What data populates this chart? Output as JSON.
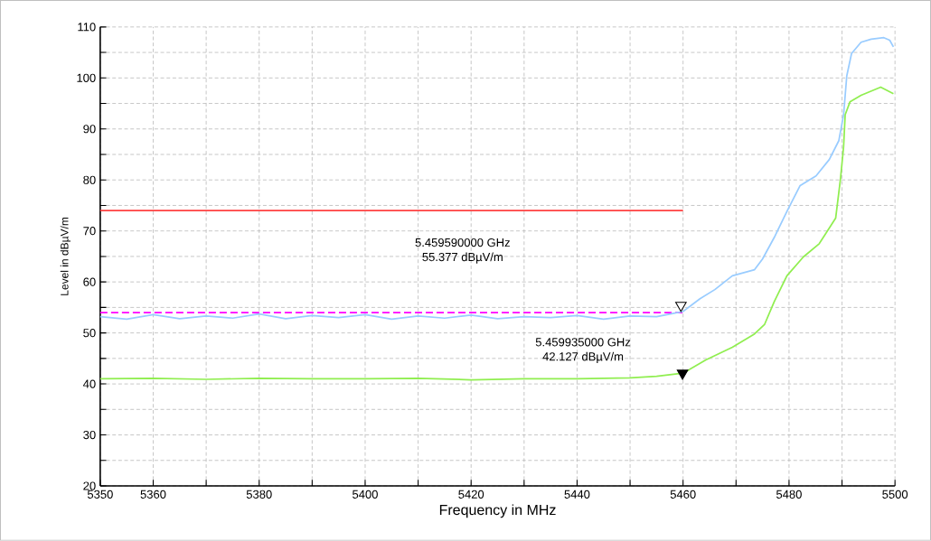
{
  "chart_data": {
    "type": "line",
    "xlabel": "Frequency in MHz",
    "ylabel": "Level in dBµV/m",
    "xlim": [
      5350,
      5500
    ],
    "ylim": [
      20,
      110
    ],
    "xticks": [
      5350,
      5360,
      {
        "value": 5370,
        "label": null
      },
      5380,
      {
        "value": 5390,
        "label": null
      },
      5400,
      {
        "value": 5410,
        "label": null
      },
      5420,
      {
        "value": 5430,
        "label": null
      },
      5440,
      {
        "value": 5450,
        "label": null
      },
      5460,
      {
        "value": 5470,
        "label": null
      },
      5480,
      {
        "value": 5490,
        "label": null
      },
      5500
    ],
    "yticks": [
      20,
      {
        "value": 25,
        "label": null
      },
      30,
      {
        "value": 35,
        "label": null
      },
      40,
      {
        "value": 45,
        "label": null
      },
      50,
      {
        "value": 55,
        "label": null
      },
      60,
      {
        "value": 65,
        "label": null
      },
      70,
      {
        "value": 75,
        "label": null
      },
      80,
      {
        "value": 85,
        "label": null
      },
      90,
      {
        "value": 95,
        "label": null
      },
      100,
      {
        "value": 105,
        "label": null
      },
      110
    ],
    "grid": true,
    "series": [
      {
        "color": "#ff4040",
        "x": [
          5350,
          5460
        ],
        "values": [
          74,
          74
        ]
      },
      {
        "color": "#ff00ff",
        "line_style": "dashed",
        "x": [
          5350,
          5460
        ],
        "values": [
          54,
          54
        ]
      },
      {
        "color": "#99ccff",
        "x": [
          5350,
          5355,
          5360,
          5365,
          5370,
          5375,
          5380,
          5385,
          5390,
          5395,
          5400,
          5405,
          5410,
          5415,
          5420,
          5425,
          5430,
          5435,
          5440,
          5445,
          5450,
          5455,
          5460,
          5463.2,
          5466,
          5469.3,
          5473.5,
          5475,
          5477.2,
          5479.6,
          5482.1,
          5485.1,
          5487.6,
          5489.4,
          5490.3,
          5490.9,
          5491.8,
          5493.6,
          5495.5,
          5497.9,
          5499,
          5499.7
        ],
        "values": [
          53.2,
          52.7,
          53.6,
          52.8,
          53.3,
          52.9,
          53.7,
          52.8,
          53.4,
          53.0,
          53.6,
          52.7,
          53.3,
          52.9,
          53.5,
          52.8,
          53.2,
          53.0,
          53.4,
          52.7,
          53.3,
          53.2,
          54.2,
          56.7,
          58.5,
          61.2,
          62.4,
          64.5,
          68.7,
          73.8,
          78.9,
          80.8,
          84.0,
          87.7,
          92.8,
          100.4,
          104.8,
          107.0,
          107.6,
          107.9,
          107.4,
          106.1
        ]
      },
      {
        "color": "#90ee50",
        "x": [
          5350,
          5360,
          5370,
          5380,
          5390,
          5400,
          5410,
          5420,
          5430,
          5440,
          5450,
          5455,
          5460,
          5464.3,
          5469.3,
          5473.5,
          5475.4,
          5477.2,
          5479.6,
          5482.7,
          5485.7,
          5488.8,
          5489.7,
          5490.3,
          5490.6,
          5491.5,
          5493.6,
          5497.3,
          5499.7
        ],
        "values": [
          41.0,
          41.1,
          40.9,
          41.1,
          41.0,
          41.0,
          41.1,
          40.8,
          41.0,
          41.0,
          41.2,
          41.5,
          42.1,
          44.7,
          47.2,
          49.8,
          51.7,
          56.1,
          61.2,
          64.9,
          67.5,
          72.5,
          80.1,
          86.5,
          92.8,
          95.3,
          96.6,
          98.2,
          96.9
        ]
      },
      {
        "type": "scatter",
        "marker": "triangle",
        "color": "#ffffff",
        "x": [
          5459.6
        ],
        "values": [
          55.4
        ]
      },
      {
        "type": "scatter",
        "marker": "triangle",
        "color": "#000000",
        "x": [
          5459.9
        ],
        "values": [
          42.1
        ]
      }
    ],
    "annotations": [
      "5.459590000 GHz",
      "55.377 dBµV/m",
      "5.459935000 GHz",
      "42.127 dBµV/m"
    ]
  }
}
